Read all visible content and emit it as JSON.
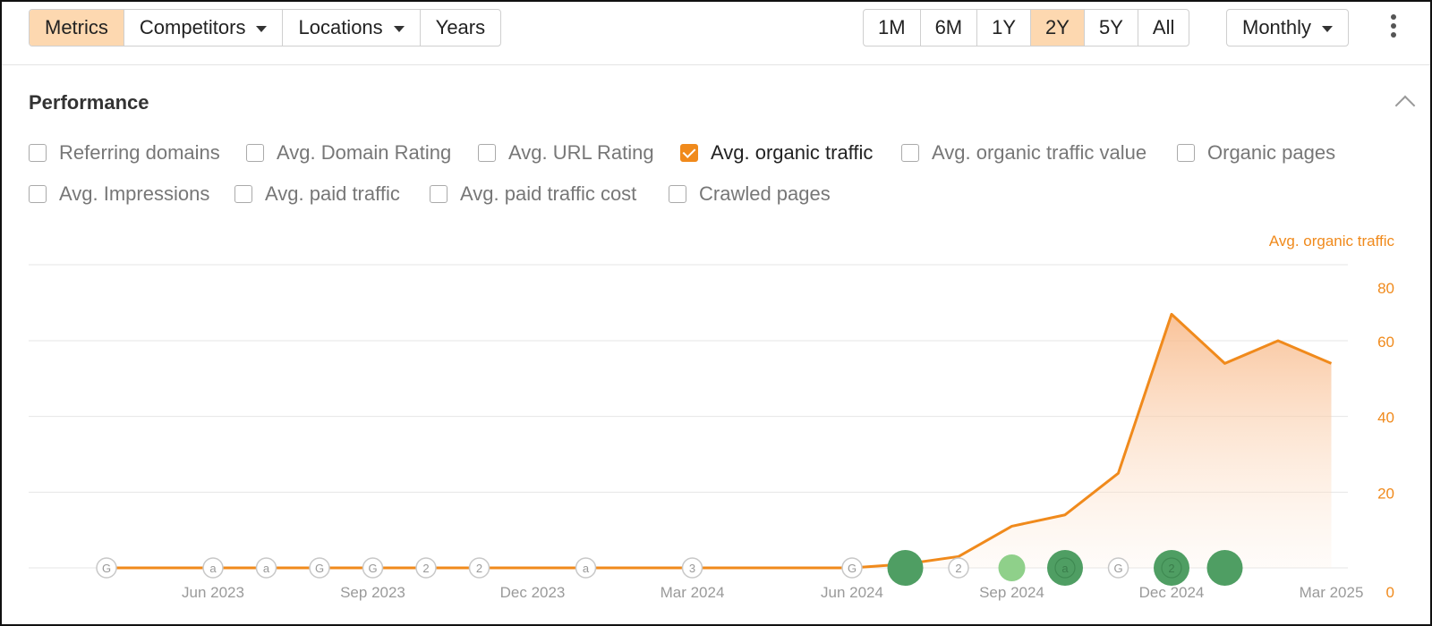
{
  "toolbar": {
    "left_group": [
      {
        "label": "Metrics",
        "active": true,
        "dropdown": false
      },
      {
        "label": "Competitors",
        "active": false,
        "dropdown": true
      },
      {
        "label": "Locations",
        "active": false,
        "dropdown": true
      },
      {
        "label": "Years",
        "active": false,
        "dropdown": false
      }
    ],
    "ranges": [
      {
        "label": "1M",
        "active": false
      },
      {
        "label": "6M",
        "active": false
      },
      {
        "label": "1Y",
        "active": false
      },
      {
        "label": "2Y",
        "active": true
      },
      {
        "label": "5Y",
        "active": false
      },
      {
        "label": "All",
        "active": false
      }
    ],
    "interval": "Monthly"
  },
  "performance": {
    "title": "Performance",
    "metrics_row1": [
      {
        "label": "Referring domains",
        "checked": false
      },
      {
        "label": "Avg. Domain Rating",
        "checked": false
      },
      {
        "label": "Avg. URL Rating",
        "checked": false
      },
      {
        "label": "Avg. organic traffic",
        "checked": true
      },
      {
        "label": "Avg. organic traffic value",
        "checked": false
      },
      {
        "label": "Organic pages",
        "checked": false
      }
    ],
    "metrics_row2": [
      {
        "label": "Avg. Impressions",
        "checked": false
      },
      {
        "label": "Avg. paid traffic",
        "checked": false
      },
      {
        "label": "Avg. paid traffic cost",
        "checked": false
      },
      {
        "label": "Crawled pages",
        "checked": false
      }
    ]
  },
  "colors": {
    "accent": "#f08a1c",
    "active_bg": "#fdd8b0",
    "event_green": "#4f9e63",
    "event_light_green": "#8fd08a"
  },
  "chart_data": {
    "type": "area",
    "series_label": "Avg. organic traffic",
    "ylim": [
      0,
      80
    ],
    "yticks": [
      "0",
      "20",
      "40",
      "60",
      "80"
    ],
    "x_tick_labels": [
      "Jun 2023",
      "Sep 2023",
      "Dec 2023",
      "Mar 2024",
      "Jun 2024",
      "Sep 2024",
      "Dec 2024",
      "Mar 2025"
    ],
    "x": [
      "Apr 2023",
      "May 2023",
      "Jun 2023",
      "Jul 2023",
      "Aug 2023",
      "Sep 2023",
      "Oct 2023",
      "Nov 2023",
      "Dec 2023",
      "Jan 2024",
      "Feb 2024",
      "Mar 2024",
      "Apr 2024",
      "May 2024",
      "Jun 2024",
      "Jul 2024",
      "Aug 2024",
      "Sep 2024",
      "Oct 2024",
      "Nov 2024",
      "Dec 2024",
      "Jan 2025",
      "Feb 2025",
      "Mar 2025"
    ],
    "values": [
      0,
      0,
      0,
      0,
      0,
      0,
      0,
      0,
      0,
      0,
      0,
      0,
      0,
      0,
      0,
      1,
      3,
      11,
      14,
      25,
      67,
      54,
      60,
      54
    ],
    "grid": true,
    "events": [
      {
        "month": "Apr 2023",
        "label": "G",
        "kind": "marker"
      },
      {
        "month": "Jun 2023",
        "label": "a",
        "kind": "marker"
      },
      {
        "month": "Jul 2023",
        "label": "a",
        "kind": "marker"
      },
      {
        "month": "Aug 2023",
        "label": "G",
        "kind": "marker"
      },
      {
        "month": "Sep 2023",
        "label": "G",
        "kind": "marker"
      },
      {
        "month": "Oct 2023",
        "label": "2",
        "kind": "marker"
      },
      {
        "month": "Nov 2023",
        "label": "2",
        "kind": "marker"
      },
      {
        "month": "Jan 2024",
        "label": "a",
        "kind": "marker"
      },
      {
        "month": "Mar 2024",
        "label": "3",
        "kind": "marker"
      },
      {
        "month": "Jun 2024",
        "label": "G",
        "kind": "marker"
      },
      {
        "month": "Jul 2024",
        "label": "",
        "kind": "dot-large"
      },
      {
        "month": "Aug 2024",
        "label": "2",
        "kind": "marker"
      },
      {
        "month": "Sep 2024",
        "label": "",
        "kind": "dot-light"
      },
      {
        "month": "Oct 2024",
        "label": "a",
        "kind": "dot-large"
      },
      {
        "month": "Nov 2024",
        "label": "G",
        "kind": "marker"
      },
      {
        "month": "Dec 2024",
        "label": "2",
        "kind": "dot-large"
      },
      {
        "month": "Jan 2025",
        "label": "",
        "kind": "dot-large"
      }
    ]
  }
}
